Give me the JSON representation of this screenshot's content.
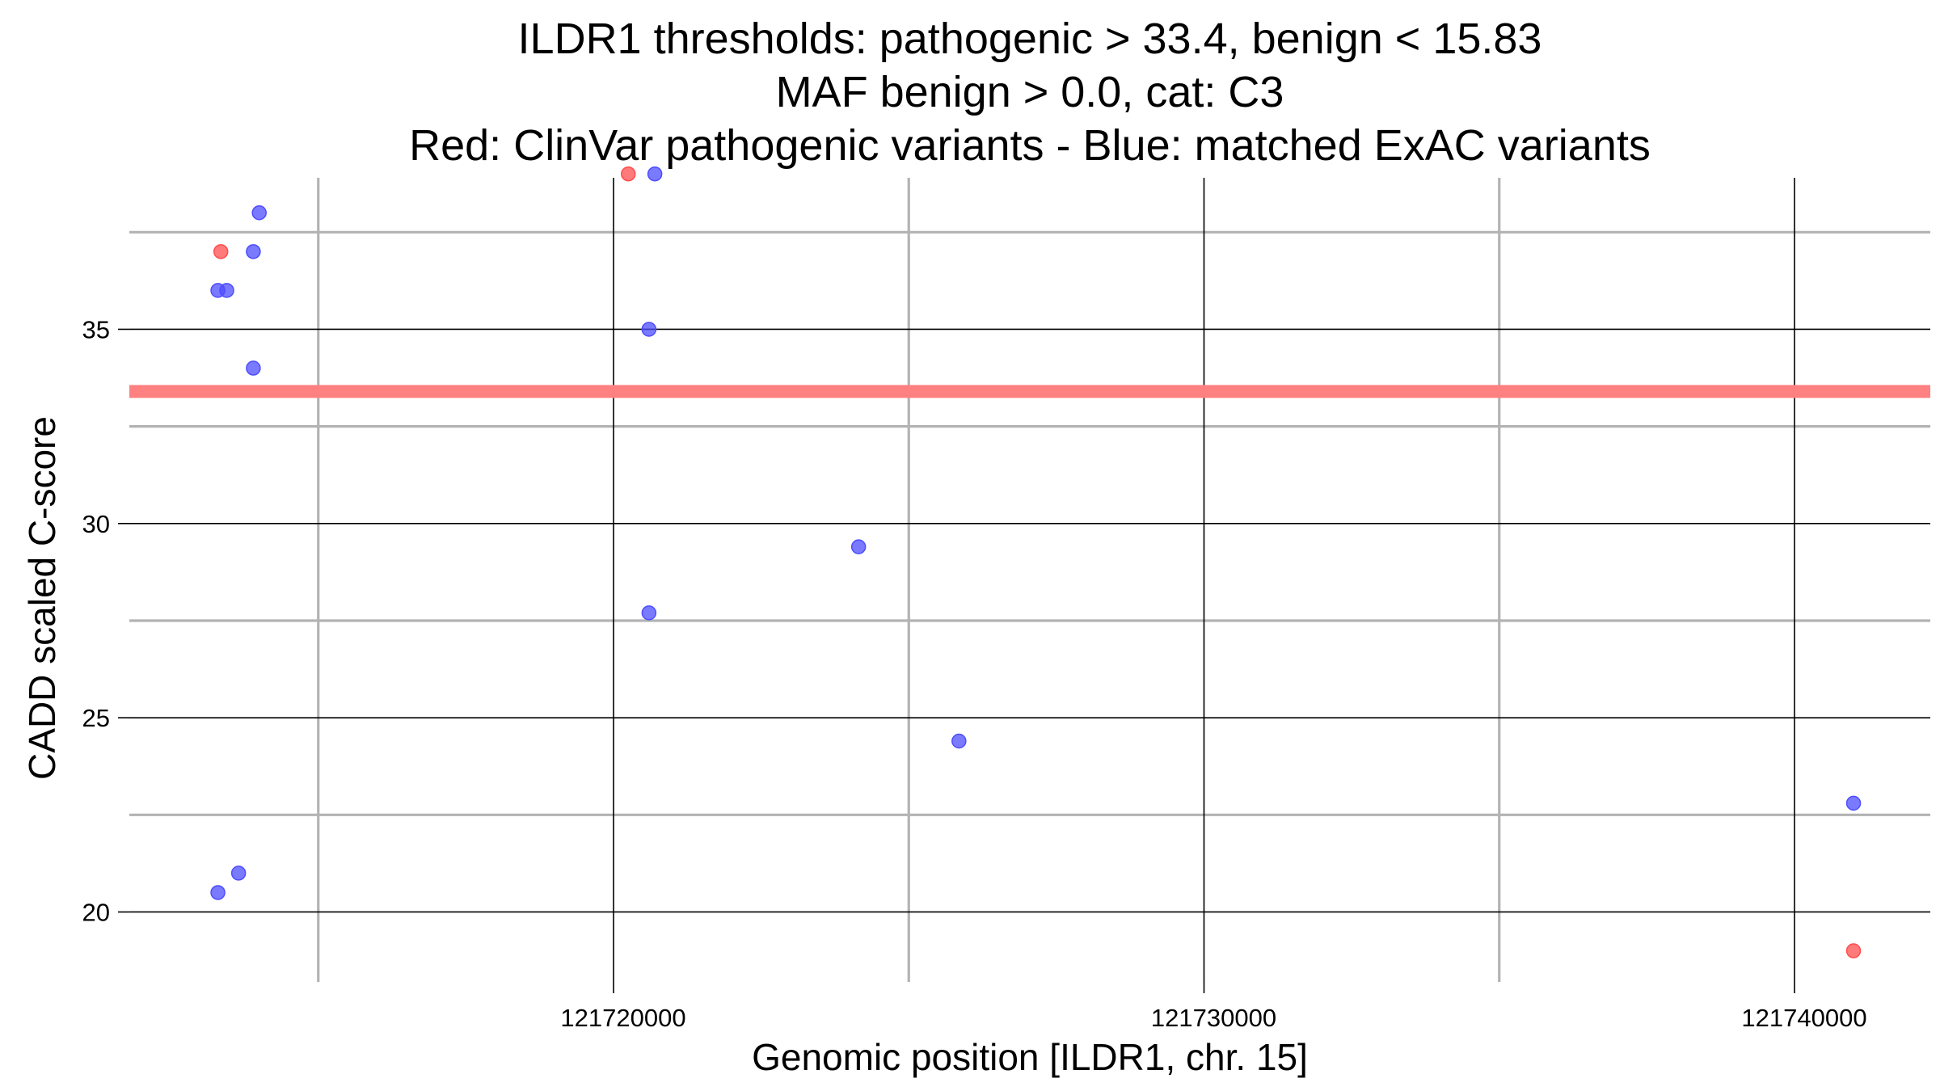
{
  "chart_data": {
    "type": "scatter",
    "title_lines": [
      "ILDR1 thresholds: pathogenic > 33.4, benign < 15.83",
      "MAF benign > 0.0, cat: C3",
      "Red: ClinVar pathogenic variants - Blue: matched ExAC variants"
    ],
    "xlabel": "Genomic position [ILDR1, chr. 15]",
    "ylabel": "CADD scaled C-score",
    "xlim": [
      121711800,
      121742300
    ],
    "ylim": [
      18.2,
      38.9
    ],
    "x_major_ticks": [
      121720000,
      121730000,
      121740000
    ],
    "x_tick_labels": [
      "121720000",
      "121730000",
      "121740000"
    ],
    "x_minor_lines": [
      121715000,
      121725000,
      121735000
    ],
    "y_major_ticks": [
      20,
      25,
      30,
      35
    ],
    "y_tick_labels": [
      "20",
      "25",
      "30",
      "35"
    ],
    "y_minor_lines": [
      22.5,
      27.5,
      32.5,
      37.5
    ],
    "threshold": {
      "value": 33.4,
      "label": "pathogenic threshold",
      "color": "#ff8080"
    },
    "series": [
      {
        "name": "ClinVar pathogenic variants",
        "color": "#ff4d4d",
        "points": [
          {
            "x": 121713350,
            "y": 37.0
          },
          {
            "x": 121720250,
            "y": 39.0
          },
          {
            "x": 121741000,
            "y": 19.0
          }
        ]
      },
      {
        "name": "Matched ExAC variants",
        "color": "#4d4dff",
        "points": [
          {
            "x": 121713300,
            "y": 36.0
          },
          {
            "x": 121713450,
            "y": 36.0
          },
          {
            "x": 121714000,
            "y": 38.0
          },
          {
            "x": 121713900,
            "y": 37.0
          },
          {
            "x": 121713900,
            "y": 34.0
          },
          {
            "x": 121713300,
            "y": 20.5
          },
          {
            "x": 121713650,
            "y": 21.0
          },
          {
            "x": 121720700,
            "y": 39.0
          },
          {
            "x": 121720600,
            "y": 35.0
          },
          {
            "x": 121720600,
            "y": 27.7
          },
          {
            "x": 121724150,
            "y": 29.4
          },
          {
            "x": 121725850,
            "y": 24.4
          },
          {
            "x": 121741000,
            "y": 22.8
          }
        ]
      }
    ]
  }
}
